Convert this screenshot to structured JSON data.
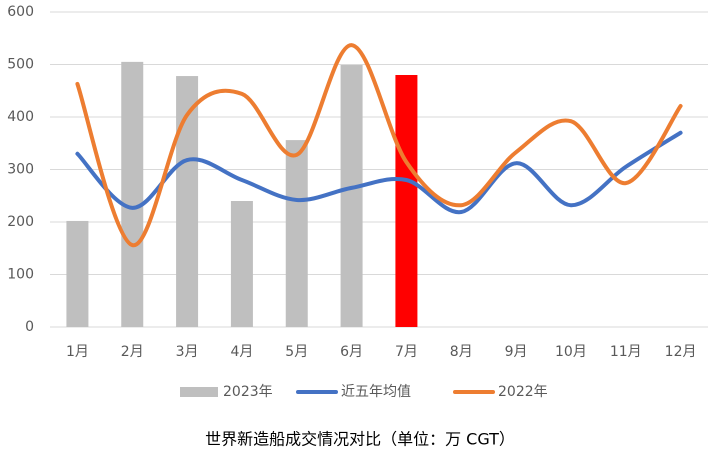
{
  "chart_data": {
    "type": "combo",
    "title": "世界新造船成交情况对比（单位：万 CGT）",
    "categories": [
      "1月",
      "2月",
      "3月",
      "4月",
      "5月",
      "6月",
      "7月",
      "8月",
      "9月",
      "10月",
      "11月",
      "12月"
    ],
    "series": [
      {
        "name": "2023年",
        "type": "bar",
        "color": "#bfbfbf",
        "colors": [
          "#bfbfbf",
          "#bfbfbf",
          "#bfbfbf",
          "#bfbfbf",
          "#bfbfbf",
          "#bfbfbf",
          "#ff0000"
        ],
        "values": [
          202,
          505,
          478,
          240,
          356,
          499,
          480,
          null,
          null,
          null,
          null,
          null
        ]
      },
      {
        "name": "近五年均值",
        "type": "line",
        "color": "#4472c4",
        "values": [
          330,
          227,
          318,
          280,
          242,
          265,
          280,
          219,
          312,
          232,
          305,
          370
        ]
      },
      {
        "name": "2022年",
        "type": "line",
        "color": "#ed7d31",
        "values": [
          463,
          156,
          404,
          444,
          328,
          537,
          314,
          232,
          333,
          392,
          274,
          421
        ]
      }
    ],
    "ylim": [
      0,
      600
    ],
    "yticks": [
      0,
      100,
      200,
      300,
      400,
      500,
      600
    ],
    "grid": true,
    "legend": "bottom"
  }
}
